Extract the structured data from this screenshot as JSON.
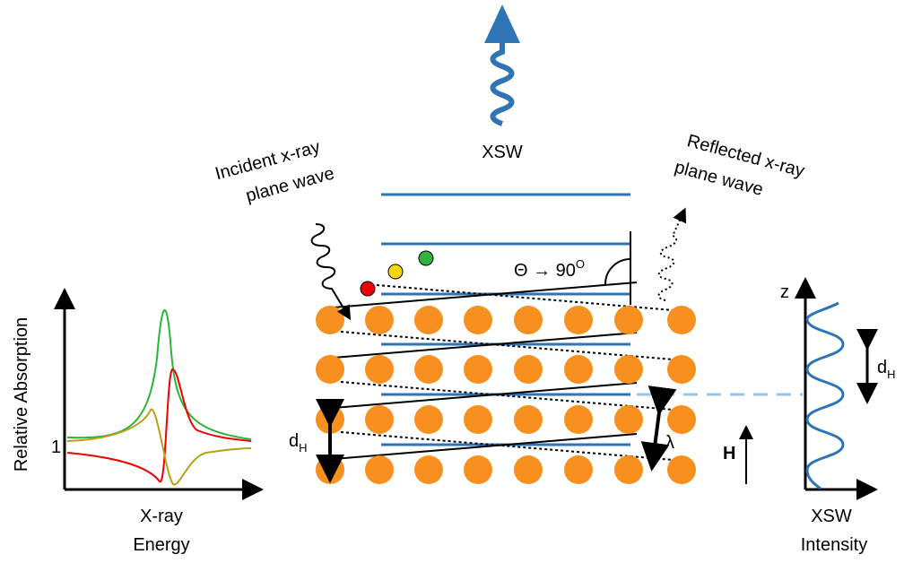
{
  "top_label": "XSW",
  "incident_label": [
    "Incident x-ray",
    "plane wave"
  ],
  "reflected_label": [
    "Reflected x-ray",
    "plane wave"
  ],
  "angle": {
    "label": "Θ → 90",
    "superscript": "O"
  },
  "absorption_plot": {
    "y_label": "Relative Absorption",
    "y_tick": "1",
    "x_label": [
      "X-ray",
      "Energy"
    ]
  },
  "lattice": {
    "spacing_label": {
      "text": "d",
      "subscript": "H"
    },
    "wavelength_label": "λ",
    "vector_label": "H"
  },
  "intensity_plot": {
    "y_label": "z",
    "spacing_label": {
      "text": "d",
      "subscript": "H"
    },
    "x_label": [
      "XSW",
      "Intensity"
    ]
  }
}
